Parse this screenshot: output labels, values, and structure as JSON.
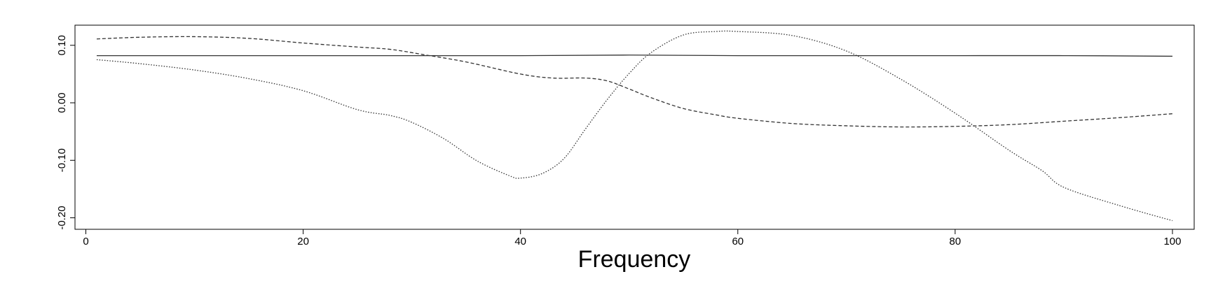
{
  "chart_data": {
    "type": "line",
    "title": "",
    "xlabel": "Frequency",
    "ylabel": "",
    "xlim": [
      -1,
      102
    ],
    "ylim": [
      -0.22,
      0.135
    ],
    "x_ticks": [
      0,
      20,
      40,
      60,
      80,
      100
    ],
    "x_tick_labels": [
      "0",
      "20",
      "40",
      "60",
      "80",
      "100"
    ],
    "y_ticks": [
      0.1,
      0.0,
      -0.1,
      -0.2
    ],
    "y_tick_labels": [
      "0.10",
      "0.00",
      "-0.10",
      "-0.20"
    ],
    "grid": false,
    "legend": "none",
    "series": [
      {
        "style": "solid",
        "color": "#333333",
        "points": [
          [
            1,
            0.082
          ],
          [
            10,
            0.082
          ],
          [
            20,
            0.082
          ],
          [
            30,
            0.082
          ],
          [
            40,
            0.082
          ],
          [
            50,
            0.083
          ],
          [
            60,
            0.082
          ],
          [
            70,
            0.082
          ],
          [
            80,
            0.082
          ],
          [
            90,
            0.082
          ],
          [
            100,
            0.081
          ]
        ]
      },
      {
        "style": "dashed",
        "color": "#333333",
        "points": [
          [
            1,
            0.111
          ],
          [
            5,
            0.114
          ],
          [
            10,
            0.115
          ],
          [
            15,
            0.112
          ],
          [
            20,
            0.104
          ],
          [
            25,
            0.097
          ],
          [
            28,
            0.093
          ],
          [
            31,
            0.084
          ],
          [
            35,
            0.071
          ],
          [
            40,
            0.05
          ],
          [
            43,
            0.043
          ],
          [
            46,
            0.043
          ],
          [
            48,
            0.038
          ],
          [
            50,
            0.024
          ],
          [
            52,
            0.009
          ],
          [
            55,
            -0.01
          ],
          [
            58,
            -0.021
          ],
          [
            60,
            -0.027
          ],
          [
            65,
            -0.036
          ],
          [
            70,
            -0.04
          ],
          [
            75,
            -0.042
          ],
          [
            80,
            -0.041
          ],
          [
            85,
            -0.038
          ],
          [
            90,
            -0.032
          ],
          [
            95,
            -0.026
          ],
          [
            100,
            -0.019
          ]
        ]
      },
      {
        "style": "dotted",
        "color": "#333333",
        "points": [
          [
            1,
            0.075
          ],
          [
            5,
            0.068
          ],
          [
            10,
            0.057
          ],
          [
            15,
            0.042
          ],
          [
            20,
            0.021
          ],
          [
            25,
            -0.012
          ],
          [
            28,
            -0.022
          ],
          [
            30,
            -0.034
          ],
          [
            33,
            -0.063
          ],
          [
            36,
            -0.101
          ],
          [
            39,
            -0.127
          ],
          [
            40,
            -0.131
          ],
          [
            42,
            -0.123
          ],
          [
            44,
            -0.097
          ],
          [
            46,
            -0.045
          ],
          [
            48,
            0.006
          ],
          [
            50,
            0.051
          ],
          [
            52,
            0.087
          ],
          [
            55,
            0.118
          ],
          [
            58,
            0.124
          ],
          [
            60,
            0.124
          ],
          [
            65,
            0.117
          ],
          [
            70,
            0.09
          ],
          [
            75,
            0.041
          ],
          [
            80,
            -0.018
          ],
          [
            85,
            -0.083
          ],
          [
            88,
            -0.118
          ],
          [
            90,
            -0.147
          ],
          [
            95,
            -0.178
          ],
          [
            100,
            -0.205
          ]
        ]
      }
    ]
  }
}
